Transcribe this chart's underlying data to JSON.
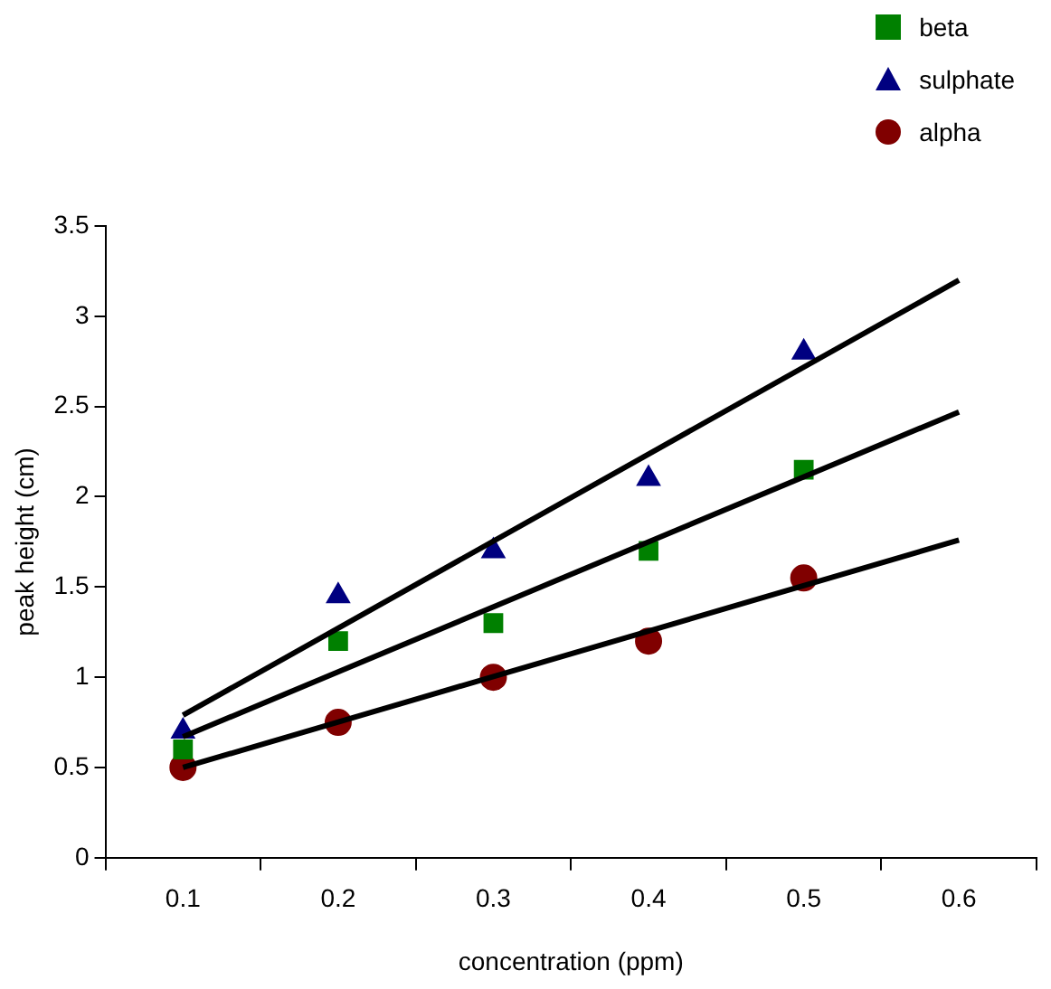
{
  "chart_data": {
    "type": "scatter",
    "xlabel": "concentration (ppm)",
    "ylabel": "peak height (cm)",
    "categories": [
      "0.1",
      "0.2",
      "0.3",
      "0.4",
      "0.5",
      "0.6"
    ],
    "ylim": [
      0,
      3.5
    ],
    "yticks": [
      0,
      0.5,
      1,
      1.5,
      2,
      2.5,
      3,
      3.5
    ],
    "grid": false,
    "legend": "top right",
    "series": [
      {
        "name": "beta",
        "color": "#008000",
        "marker": "square",
        "values": [
          0.6,
          1.2,
          1.3,
          1.7,
          2.15,
          null
        ]
      },
      {
        "name": "sulphate",
        "color": "#000080",
        "marker": "triangle",
        "values": [
          0.7,
          1.45,
          1.7,
          2.1,
          2.8,
          null
        ]
      },
      {
        "name": "alpha",
        "color": "#800000",
        "marker": "circle",
        "values": [
          0.5,
          0.75,
          1.0,
          1.2,
          1.55,
          null
        ]
      },
      {
        "type": "line",
        "color": "#000000",
        "marker": "none",
        "x": [
          "0.1",
          "0.6"
        ],
        "values": [
          0.79,
          3.2
        ]
      },
      {
        "type": "line",
        "color": "#000000",
        "marker": "none",
        "x": [
          "0.1",
          "0.6"
        ],
        "values": [
          0.67,
          2.47
        ]
      },
      {
        "type": "line",
        "color": "#000000",
        "marker": "none",
        "x": [
          "0.1",
          "0.6"
        ],
        "values": [
          0.5,
          1.76
        ]
      }
    ]
  }
}
